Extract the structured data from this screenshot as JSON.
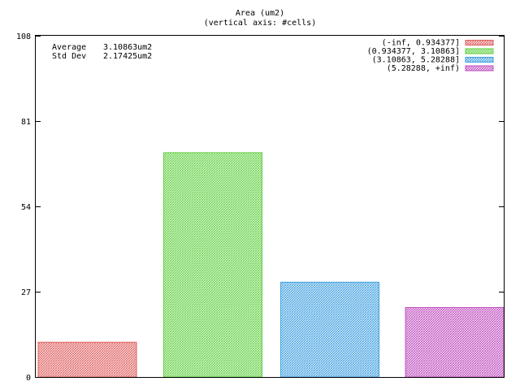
{
  "chart_data": {
    "type": "bar",
    "title": "Area (um2)",
    "subtitle": "(vertical axis: #cells)",
    "xlabel": "",
    "ylabel": "",
    "ylim": [
      0,
      108
    ],
    "yticks": [
      "0",
      "27",
      "54",
      "81",
      "108"
    ],
    "grid": false,
    "legend_position": "top-right",
    "categories": [
      "(-inf, 0.934377]",
      "(0.934377, 3.10863]",
      "(3.10863, 5.28288]",
      "(5.28288, +inf)"
    ],
    "values": [
      11,
      71,
      30,
      22
    ],
    "colors": [
      "#e06060",
      "#60d040",
      "#40a0e0",
      "#c050c0"
    ],
    "stats": {
      "average_label": "Average",
      "average_value": "3.10863um2",
      "stddev_label": "Std Dev",
      "stddev_value": "2.17425um2"
    }
  }
}
